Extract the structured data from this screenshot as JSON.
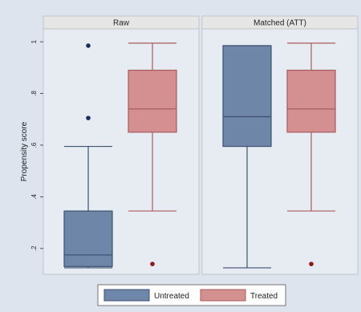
{
  "chart_data": {
    "type": "box",
    "ylabel": "Propensity score",
    "ylim": [
      0.1,
      1.05
    ],
    "yticks": [
      {
        "value": 0.2,
        "label": ".2"
      },
      {
        "value": 0.4,
        "label": ".4"
      },
      {
        "value": 0.6,
        "label": ".6"
      },
      {
        "value": 0.8,
        "label": ".8"
      },
      {
        "value": 1.0,
        "label": "1"
      }
    ],
    "grid": false,
    "legend_position": "bottom",
    "groups": [
      "Untreated",
      "Treated"
    ],
    "colors": {
      "Untreated": "#6e86a8",
      "Treated": "#d49090",
      "Untreated_edge": "#3e5270",
      "Treated_edge": "#a85c5c",
      "panel_bg": "#e7ecf3",
      "outer_bg": "#dde4ee",
      "strip_bg": "#e6e6e6",
      "outlier": "#1a2e5c",
      "outlier_treated": "#8b1a1a"
    },
    "panels": [
      {
        "title": "Raw",
        "boxes": [
          {
            "group": "Untreated",
            "whisker_low": 0.125,
            "q1": 0.13,
            "median": 0.175,
            "q3": 0.345,
            "whisker_high": 0.595,
            "outliers": [
              0.985,
              0.705
            ]
          },
          {
            "group": "Treated",
            "whisker_low": 0.345,
            "q1": 0.65,
            "median": 0.74,
            "q3": 0.89,
            "whisker_high": 0.995,
            "outliers": [
              0.14
            ]
          }
        ]
      },
      {
        "title": "Matched (ATT)",
        "boxes": [
          {
            "group": "Untreated",
            "whisker_low": 0.125,
            "q1": 0.595,
            "median": 0.71,
            "q3": 0.985,
            "whisker_high": 0.985,
            "outliers": []
          },
          {
            "group": "Treated",
            "whisker_low": 0.345,
            "q1": 0.65,
            "median": 0.74,
            "q3": 0.89,
            "whisker_high": 0.995,
            "outliers": [
              0.14
            ]
          }
        ]
      }
    ]
  }
}
